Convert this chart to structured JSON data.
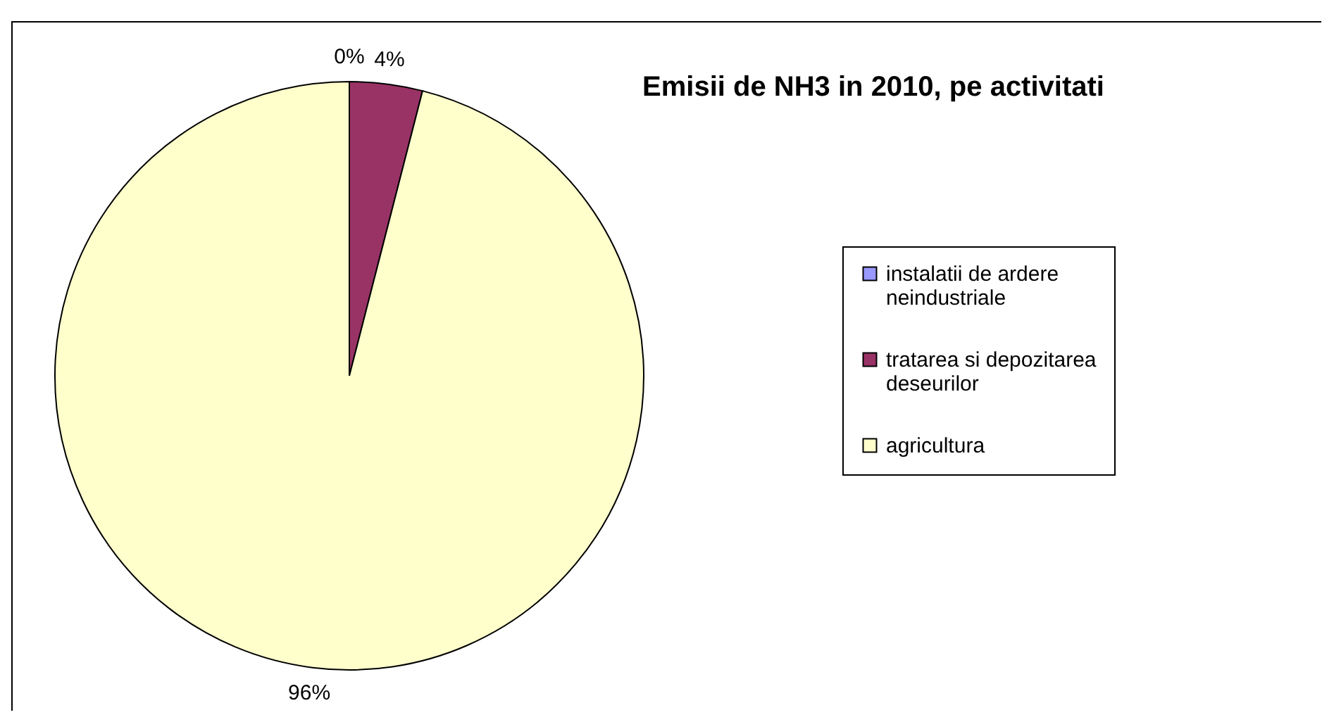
{
  "chart_data": {
    "type": "pie",
    "title": "Emisii de NH3 in 2010, pe activitati",
    "categories": [
      "instalatii de ardere neindustriale",
      "tratarea si depozitarea deseurilor",
      "agricultura"
    ],
    "values": [
      0,
      4,
      96
    ],
    "colors": [
      "#9999ff",
      "#993366",
      "#ffffcc"
    ],
    "value_labels": [
      "0%",
      "4%",
      "96%"
    ],
    "legend": "right"
  }
}
